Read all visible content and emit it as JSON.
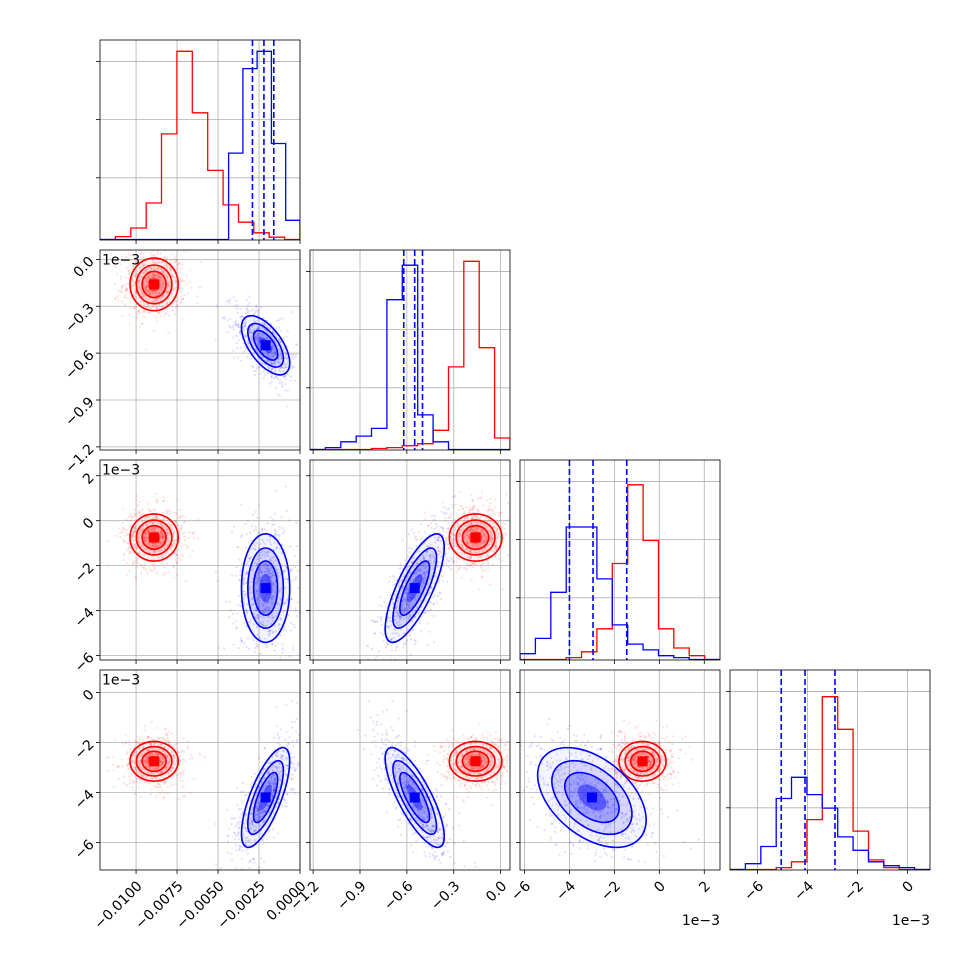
{
  "chart_data": {
    "type": "corner",
    "parameters": [
      {
        "ticks": [
          -0.01,
          -0.0075,
          -0.005,
          -0.0025,
          0.0
        ],
        "tick_labels": [
          "−0.0100",
          "−0.0075",
          "−0.0050",
          "−0.0025",
          "0.0000"
        ],
        "range": [
          -0.0122,
          0.0
        ]
      },
      {
        "ticks": [
          -1.2,
          -0.9,
          -0.6,
          -0.3,
          0.0
        ],
        "tick_labels": [
          "−1.2",
          "−0.9",
          "−0.6",
          "−0.3",
          "0.0"
        ],
        "range": [
          -1.22,
          0.06
        ],
        "offset_label": "1e−3"
      },
      {
        "ticks": [
          -6,
          -4,
          -2,
          0,
          2
        ],
        "tick_labels": [
          "−6",
          "−4",
          "−2",
          "0",
          "2"
        ],
        "range": [
          -6.2,
          2.7
        ],
        "offset_label": "1e−3"
      },
      {
        "ticks": [
          -6,
          -4,
          -2,
          0
        ],
        "tick_labels": [
          "−6",
          "−4",
          "−2",
          "0"
        ],
        "range": [
          -7.1,
          0.9
        ],
        "offset_label": "1e−3"
      }
    ],
    "bottom_offset_labels": {
      "2": "1e−3",
      "3": "1e−3"
    },
    "series": [
      {
        "color": "#ff0000",
        "mean": [
          -0.0089,
          -0.16,
          -0.75,
          -2.75
        ],
        "std": [
          0.0007,
          0.08,
          0.5,
          0.38
        ],
        "rho": {
          "0-1": 0.0,
          "0-2": 0.0,
          "0-3": 0.0,
          "1-2": 0.0,
          "1-3": 0.0,
          "2-3": 0.0
        },
        "hist": [
          [
            0.0,
            0.015,
            0.06,
            0.19,
            0.55,
            0.98,
            0.66,
            0.36,
            0.18,
            0.09,
            0.035,
            0.012,
            0.0
          ],
          [
            0.0,
            0.0,
            0.0,
            0.0,
            0.005,
            0.01,
            0.02,
            0.03,
            0.1,
            0.43,
            0.98,
            0.53,
            0.06
          ],
          [
            0.0,
            0.0,
            0.0,
            0.01,
            0.04,
            0.16,
            0.5,
            0.91,
            0.62,
            0.16,
            0.06,
            0.02,
            0.0
          ],
          [
            0.0,
            0.0,
            0.0,
            0.01,
            0.04,
            0.26,
            0.9,
            0.73,
            0.2,
            0.05,
            0.01,
            0.0,
            0.0
          ]
        ]
      },
      {
        "color": "#0000ff",
        "mean": [
          -0.0021,
          -0.55,
          -3.0,
          -4.2
        ],
        "std": [
          0.0007,
          0.09,
          1.15,
          0.95
        ],
        "rho": {
          "0-1": -0.6,
          "0-2": 0.0,
          "0-3": 0.72,
          "1-2": 0.75,
          "1-3": -0.78,
          "2-3": -0.45
        },
        "hist": [
          [
            0.0,
            0.0,
            0.0,
            0.0,
            0.0,
            0.0,
            0.0,
            0.0,
            0.0,
            0.45,
            0.89,
            0.98,
            0.5,
            0.1
          ],
          [
            0.0,
            0.01,
            0.04,
            0.07,
            0.11,
            0.78,
            0.96,
            0.18,
            0.04,
            0.0,
            0.0,
            0.0,
            0.0
          ],
          [
            0.03,
            0.11,
            0.35,
            0.69,
            0.69,
            0.42,
            0.18,
            0.08,
            0.05,
            0.02,
            0.01,
            0.0,
            0.0
          ],
          [
            0.0,
            0.03,
            0.12,
            0.37,
            0.48,
            0.39,
            0.32,
            0.17,
            0.1,
            0.04,
            0.02,
            0.01,
            0.0
          ]
        ]
      }
    ],
    "quantile_lines": {
      "color": "#0000ff",
      "style": "dashed",
      "values": [
        [
          -0.0029,
          -0.0022,
          -0.0016
        ],
        [
          -0.62,
          -0.55,
          -0.5
        ],
        [
          -4.0,
          -2.95,
          -1.45
        ],
        [
          -5.05,
          -4.1,
          -2.9
        ]
      ]
    },
    "grid": true,
    "legend": "none"
  }
}
